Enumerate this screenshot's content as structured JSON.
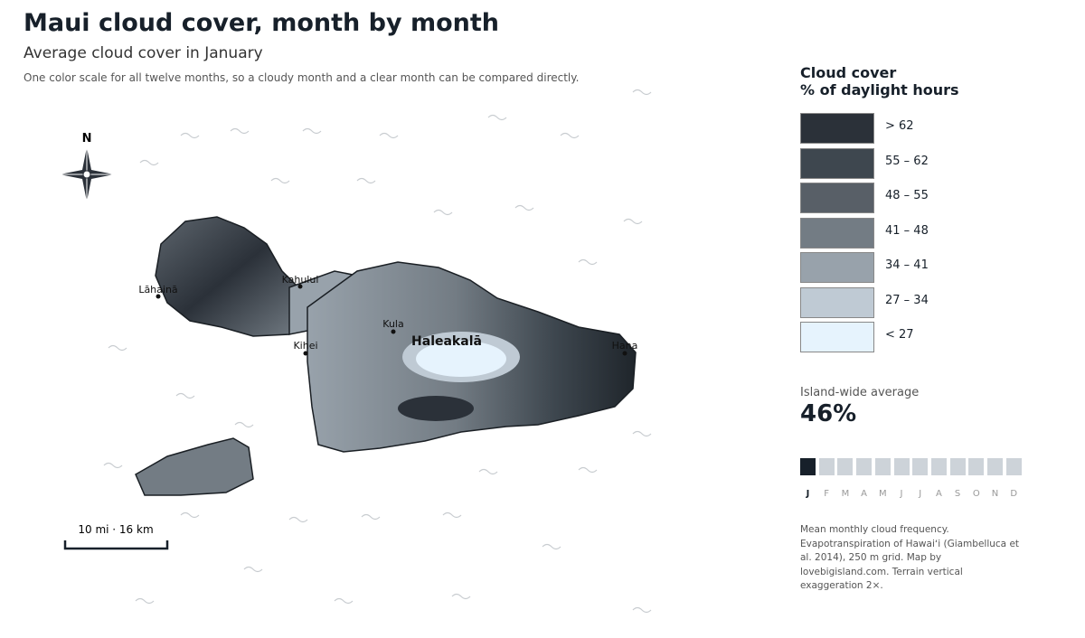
{
  "header": {
    "title": "Maui cloud cover, month by month",
    "subtitle": "Average cloud cover in January",
    "note": "One color scale for all twelve months, so a cloudy month and a clear month can be compared directly."
  },
  "map": {
    "north": "N",
    "places": [
      "Lāhainā",
      "Kahului",
      "Kula",
      "Kihei",
      "Hana"
    ],
    "peak": "Haleakalā",
    "scale_bar": "10 mi · 16 km"
  },
  "legend": {
    "title": [
      "Cloud cover",
      "% of daylight hours"
    ],
    "classes": [
      {
        "label": "> 62",
        "color": "#2b3139"
      },
      {
        "label": "55 – 62",
        "color": "#3e474f"
      },
      {
        "label": "48 – 55",
        "color": "#585f67"
      },
      {
        "label": "41 – 48",
        "color": "#737c84"
      },
      {
        "label": "34 – 41",
        "color": "#98a2ab"
      },
      {
        "label": "27 – 34",
        "color": "#bfcad4"
      },
      {
        "label": "< 27",
        "color": "#e6f3fd"
      }
    ]
  },
  "summary": {
    "label": "Island-wide average",
    "value": "46%"
  },
  "months": {
    "labels": [
      "J",
      "F",
      "M",
      "A",
      "M",
      "J",
      "J",
      "A",
      "S",
      "O",
      "N",
      "D"
    ],
    "selected": 0
  },
  "source": "Mean monthly cloud frequency. Evapotranspiration of Hawaiʻi (Giambelluca et al. 2014), 250 m grid. Map by lovebigisland.com. Terrain vertical exaggeration 2×."
}
